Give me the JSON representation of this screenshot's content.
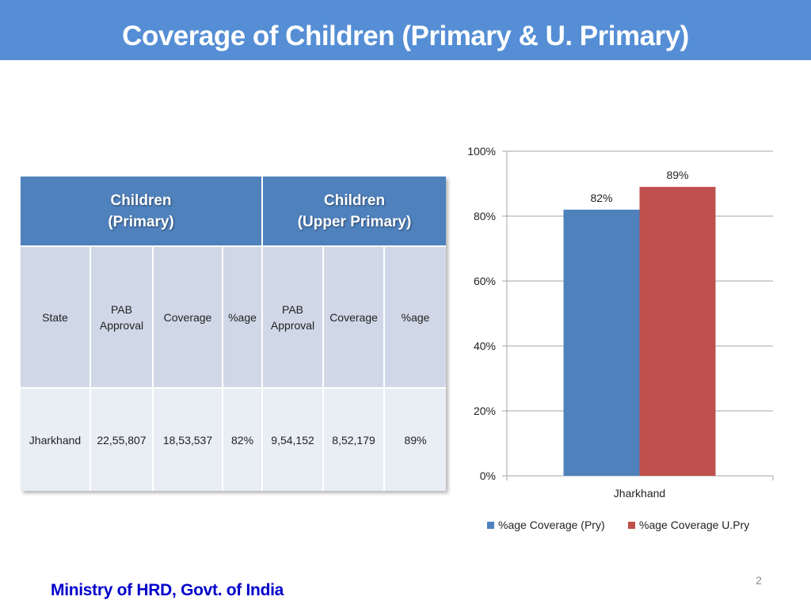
{
  "slide": {
    "title": "Coverage of Children (Primary & U. Primary)",
    "footer": "Ministry of HRD, Govt. of India",
    "page_number": "2"
  },
  "table": {
    "group_headers": [
      {
        "line1": "Children",
        "line2": "(Primary)"
      },
      {
        "line1": "Children",
        "line2": "(Upper Primary)"
      }
    ],
    "columns": [
      {
        "line1": "State",
        "line2": ""
      },
      {
        "line1": "PAB",
        "line2": "Approval"
      },
      {
        "line1": "Coverage",
        "line2": ""
      },
      {
        "line1": "%age",
        "line2": ""
      },
      {
        "line1": "PAB",
        "line2": "Approval"
      },
      {
        "line1": "Coverage",
        "line2": ""
      },
      {
        "line1": "%age",
        "line2": ""
      }
    ],
    "rows": [
      [
        "Jharkhand",
        "22,55,807",
        "18,53,537",
        "82%",
        "9,54,152",
        "8,52,179",
        "89%"
      ]
    ]
  },
  "chart_data": {
    "type": "bar",
    "categories": [
      "Jharkhand"
    ],
    "series": [
      {
        "name": "%age Coverage (Pry)",
        "values": [
          82
        ],
        "label": "82%",
        "color": "#4f81bd"
      },
      {
        "name": "%age Coverage U.Pry",
        "values": [
          89
        ],
        "label": "89%",
        "color": "#c0504d"
      }
    ],
    "ylim": [
      0,
      100
    ],
    "yticks": [
      "0%",
      "20%",
      "40%",
      "60%",
      "80%",
      "100%"
    ],
    "ytick_values": [
      0,
      20,
      40,
      60,
      80,
      100
    ],
    "grid": true,
    "legend": "bottom",
    "title": "",
    "xlabel": "",
    "ylabel": ""
  },
  "colors": {
    "title_bar": "#558ed5",
    "table_header": "#4f81bd",
    "table_sub": "#d0d8e8",
    "table_body": "#e9edf4",
    "footer_text": "#0000cc"
  }
}
